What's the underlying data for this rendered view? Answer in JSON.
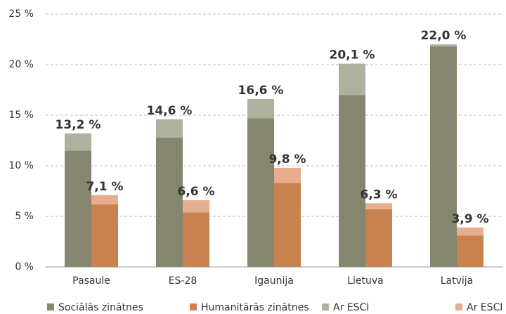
{
  "chart_data": {
    "type": "grouped-stacked-bar",
    "categories": [
      "Pasaule",
      "ES-28",
      "Igaunija",
      "Lietuva",
      "Latvija"
    ],
    "series": [
      {
        "name": "Sociālās zinātnes",
        "color": "#868670",
        "stack": 0,
        "values": [
          11.5,
          12.8,
          14.7,
          17.0,
          21.8
        ]
      },
      {
        "name": "Humanitārās zinātnes",
        "color": "#c8824f",
        "stack": 1,
        "values": [
          6.2,
          5.4,
          8.3,
          5.7,
          3.1
        ]
      },
      {
        "name": "Ar ESCI",
        "color": "#aeb19d",
        "stack": 0,
        "values": [
          1.7,
          1.8,
          1.9,
          3.1,
          0.2
        ]
      },
      {
        "name": "Ar ESCI",
        "color": "#e6ae8e",
        "stack": 1,
        "values": [
          0.9,
          1.2,
          1.5,
          0.6,
          0.8
        ]
      }
    ],
    "totals": [
      {
        "stack": 0,
        "values": [
          13.2,
          14.6,
          16.6,
          20.1,
          22.0
        ],
        "value_labels": [
          "13,2 %",
          "14,6 %",
          "16,6 %",
          "20,1 %",
          "22,0 %"
        ]
      },
      {
        "stack": 1,
        "values": [
          7.1,
          6.6,
          9.8,
          6.3,
          3.9
        ],
        "value_labels": [
          "7,1 %",
          "6,6 %",
          "9,8 %",
          "6,3 %",
          "3,9 %"
        ]
      }
    ],
    "ylim": [
      0,
      25
    ],
    "yticks": [
      {
        "value": 0,
        "label": "0 %"
      },
      {
        "value": 5,
        "label": "5 %"
      },
      {
        "value": 10,
        "label": "10 %"
      },
      {
        "value": 15,
        "label": "15 %"
      },
      {
        "value": 20,
        "label": "20 %"
      },
      {
        "value": 25,
        "label": "25 %"
      }
    ],
    "grid": true
  }
}
